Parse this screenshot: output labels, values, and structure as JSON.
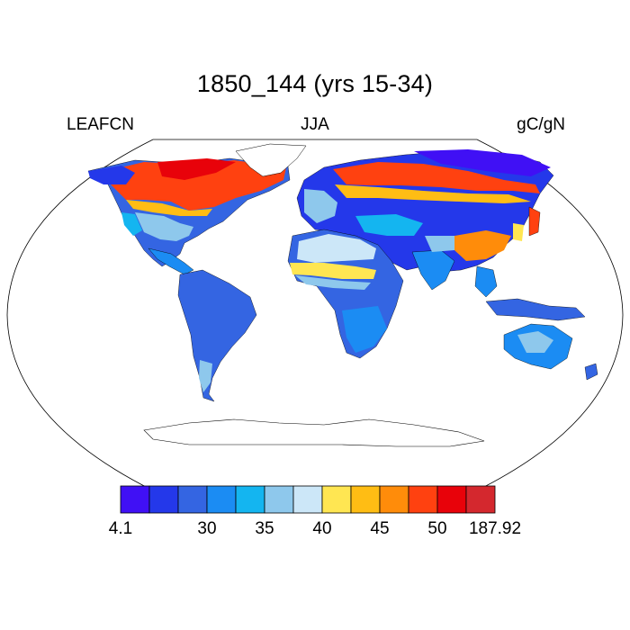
{
  "title": "1850_144 (yrs 15-34)",
  "left_label": "LEAFCN",
  "center_label": "JJA",
  "right_label": "gC/gN",
  "colorbar": {
    "colors": [
      "#4010f5",
      "#2438ea",
      "#3465e2",
      "#1b8cf3",
      "#14b5f0",
      "#8ec8ec",
      "#cce7f8",
      "#ffe652",
      "#ffbd14",
      "#ff8c0a",
      "#ff4110",
      "#e8020a",
      "#d4282e"
    ],
    "labels": [
      {
        "boundary": 0,
        "text": "4.1"
      },
      {
        "boundary": 3,
        "text": "30"
      },
      {
        "boundary": 5,
        "text": "35"
      },
      {
        "boundary": 7,
        "text": "40"
      },
      {
        "boundary": 9,
        "text": "45"
      },
      {
        "boundary": 11,
        "text": "50"
      },
      {
        "boundary": 13,
        "text": "187.92"
      }
    ]
  },
  "legend_colors": {
    "low": "#2438ea",
    "mid": "#3465e2",
    "light": "#8ec8ec",
    "yellow": "#ffe652",
    "orange": "#ff8c0a",
    "red": "#e8020a"
  }
}
